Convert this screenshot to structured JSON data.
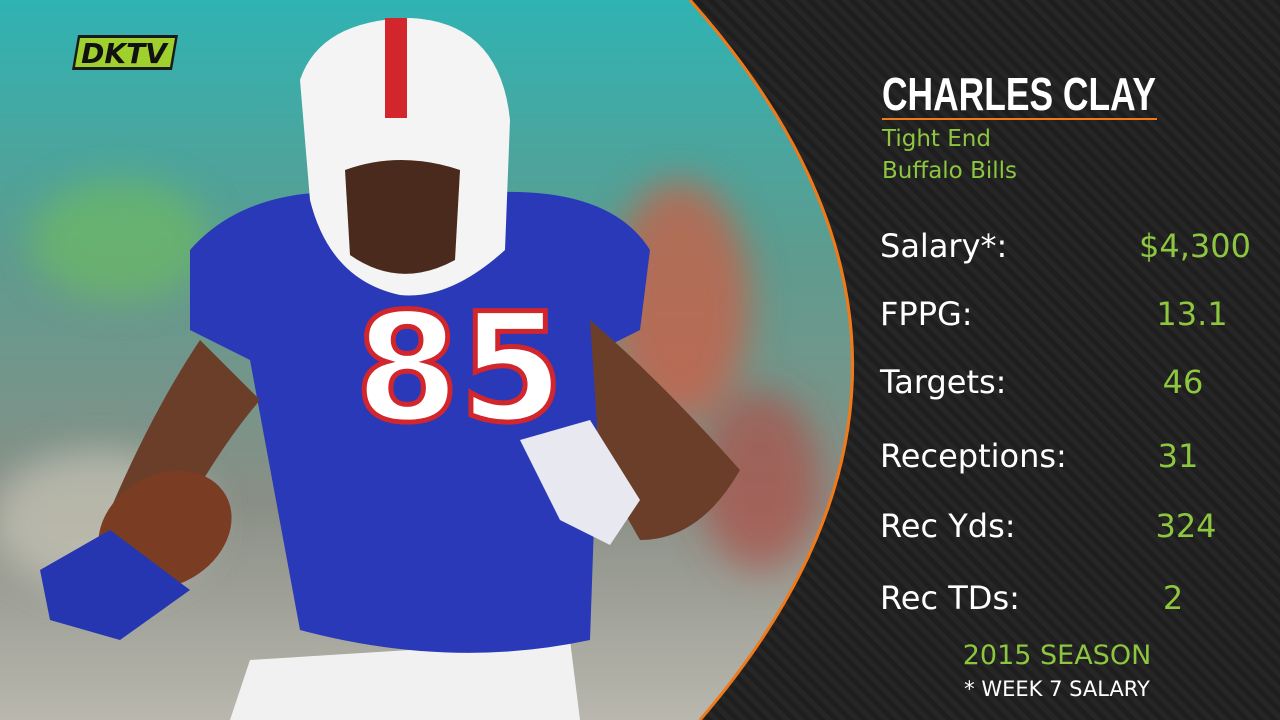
{
  "logo": "DKTV",
  "player": {
    "name": "CHARLES CLAY",
    "position": "Tight End",
    "team": "Buffalo Bills"
  },
  "stats": [
    {
      "label": "Salary*:",
      "value": "$4,300"
    },
    {
      "label": "FPPG:",
      "value": "13.1"
    },
    {
      "label": "Targets:",
      "value": "46"
    },
    {
      "label": "Receptions:",
      "value": "31"
    },
    {
      "label": "Rec Yds:",
      "value": "324"
    },
    {
      "label": "Rec TDs:",
      "value": "2"
    }
  ],
  "footer": {
    "season": "2015 SEASON",
    "note": "* WEEK 7 SALARY"
  }
}
